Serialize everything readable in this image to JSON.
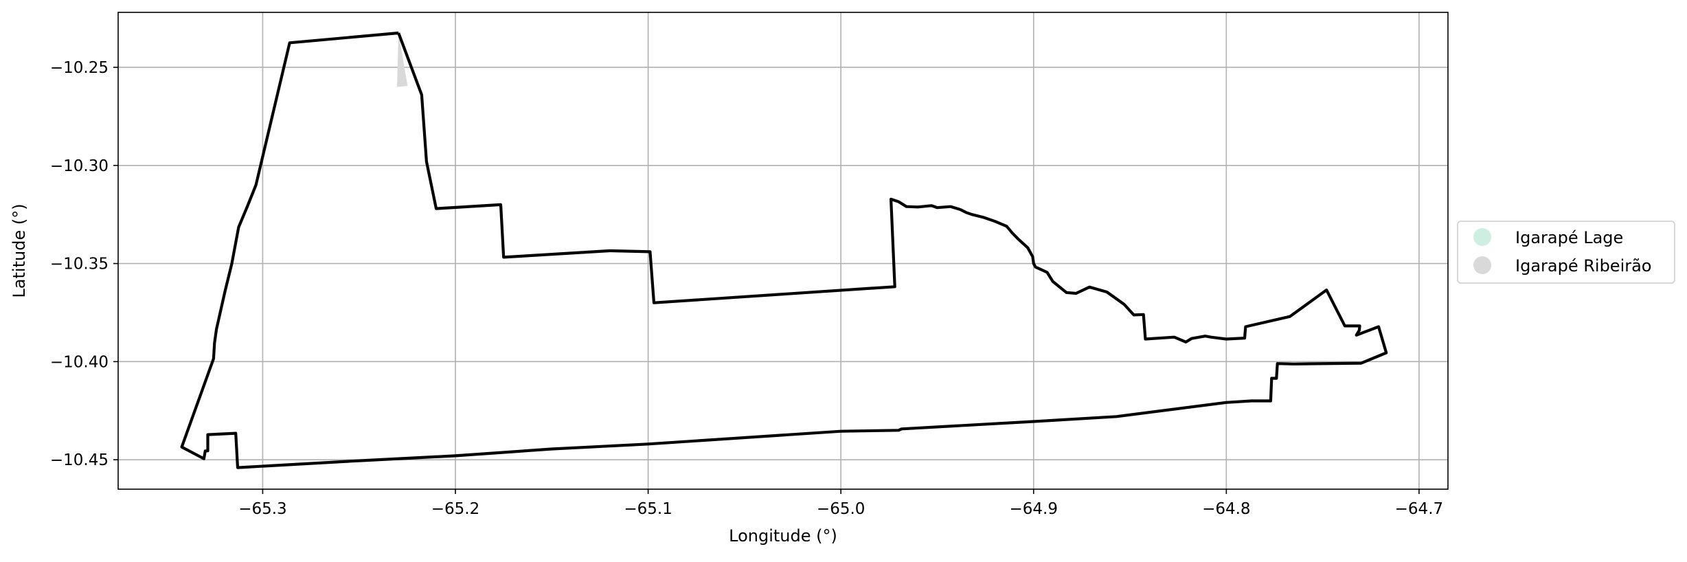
{
  "chart_data": {
    "type": "map",
    "xlabel": "Longitude (°)",
    "ylabel": "Latitude (°)",
    "xlim": [
      -65.375,
      -64.685
    ],
    "ylim": [
      -10.465,
      -10.222
    ],
    "xticks": [
      -65.3,
      -65.2,
      -65.1,
      -65.0,
      -64.9,
      -64.8,
      -64.7
    ],
    "xtick_labels": [
      "−65.3",
      "−65.2",
      "−65.1",
      "−65.0",
      "−64.9",
      "−64.8",
      "−64.7"
    ],
    "yticks": [
      -10.25,
      -10.3,
      -10.35,
      -10.4,
      -10.45
    ],
    "ytick_labels": [
      "−10.25",
      "−10.30",
      "−10.35",
      "−10.40",
      "−10.45"
    ],
    "grid": true,
    "legend_position": "right",
    "legend": [
      {
        "label": "Igarapé Lage",
        "color": "#cdeee0"
      },
      {
        "label": "Igarapé Ribeirão",
        "color": "#d9d9d9"
      }
    ],
    "boundary_color": "#000000",
    "shaded_region_color": "#d9d9d9",
    "shaded_region": [
      [
        -65.2295,
        -10.2325
      ],
      [
        -65.2248,
        -10.2595
      ],
      [
        -65.2303,
        -10.26
      ]
    ],
    "boundary": [
      [
        -65.2295,
        -10.2325
      ],
      [
        -65.286,
        -10.2375
      ],
      [
        -65.3035,
        -10.31
      ],
      [
        -65.308,
        -10.321
      ],
      [
        -65.3125,
        -10.3315
      ],
      [
        -65.316,
        -10.35
      ],
      [
        -65.3195,
        -10.364
      ],
      [
        -65.324,
        -10.3835
      ],
      [
        -65.325,
        -10.3905
      ],
      [
        -65.3255,
        -10.3985
      ],
      [
        -65.342,
        -10.4435
      ],
      [
        -65.3305,
        -10.4495
      ],
      [
        -65.3298,
        -10.4455
      ],
      [
        -65.3285,
        -10.4455
      ],
      [
        -65.3285,
        -10.4372
      ],
      [
        -65.314,
        -10.4365
      ],
      [
        -65.313,
        -10.454
      ],
      [
        -65.25,
        -10.4505
      ],
      [
        -65.2,
        -10.448
      ],
      [
        -65.15,
        -10.4445
      ],
      [
        -65.1,
        -10.442
      ],
      [
        -65.0,
        -10.4355
      ],
      [
        -64.97,
        -10.435
      ],
      [
        -64.9685,
        -10.4343
      ],
      [
        -64.9,
        -10.4305
      ],
      [
        -64.857,
        -10.428
      ],
      [
        -64.8,
        -10.4208
      ],
      [
        -64.787,
        -10.42
      ],
      [
        -64.777,
        -10.42
      ],
      [
        -64.7765,
        -10.4085
      ],
      [
        -64.774,
        -10.4085
      ],
      [
        -64.7735,
        -10.401
      ],
      [
        -64.765,
        -10.4012
      ],
      [
        -64.73,
        -10.4008
      ],
      [
        -64.717,
        -10.3955
      ],
      [
        -64.721,
        -10.3822
      ],
      [
        -64.7325,
        -10.3865
      ],
      [
        -64.731,
        -10.384
      ],
      [
        -64.7308,
        -10.3818
      ],
      [
        -64.7385,
        -10.3818
      ],
      [
        -64.748,
        -10.3635
      ],
      [
        -64.767,
        -10.377
      ],
      [
        -64.79,
        -10.3822
      ],
      [
        -64.7905,
        -10.388
      ],
      [
        -64.8,
        -10.3885
      ],
      [
        -64.808,
        -10.3875
      ],
      [
        -64.811,
        -10.387
      ],
      [
        -64.818,
        -10.3882
      ],
      [
        -64.821,
        -10.39
      ],
      [
        -64.827,
        -10.3875
      ],
      [
        -64.842,
        -10.3885
      ],
      [
        -64.843,
        -10.376
      ],
      [
        -64.848,
        -10.3762
      ],
      [
        -64.853,
        -10.3708
      ],
      [
        -64.862,
        -10.3645
      ],
      [
        -64.871,
        -10.362
      ],
      [
        -64.878,
        -10.3652
      ],
      [
        -64.883,
        -10.3648
      ],
      [
        -64.89,
        -10.3592
      ],
      [
        -64.893,
        -10.3545
      ],
      [
        -64.899,
        -10.3518
      ],
      [
        -64.9,
        -10.35
      ],
      [
        -64.9005,
        -10.3465
      ],
      [
        -64.903,
        -10.342
      ],
      [
        -64.908,
        -10.3375
      ],
      [
        -64.911,
        -10.3345
      ],
      [
        -64.914,
        -10.331
      ],
      [
        -64.92,
        -10.3285
      ],
      [
        -64.926,
        -10.3265
      ],
      [
        -64.932,
        -10.325
      ],
      [
        -64.935,
        -10.324
      ],
      [
        -64.938,
        -10.3225
      ],
      [
        -64.943,
        -10.321
      ],
      [
        -64.95,
        -10.3215
      ],
      [
        -64.953,
        -10.3205
      ],
      [
        -64.96,
        -10.3212
      ],
      [
        -64.966,
        -10.321
      ],
      [
        -64.97,
        -10.3185
      ],
      [
        -64.974,
        -10.3172
      ],
      [
        -64.972,
        -10.3618
      ],
      [
        -65.097,
        -10.37
      ],
      [
        -65.099,
        -10.344
      ],
      [
        -65.12,
        -10.3435
      ],
      [
        -65.175,
        -10.3468
      ],
      [
        -65.1765,
        -10.32
      ],
      [
        -65.21,
        -10.322
      ],
      [
        -65.215,
        -10.298
      ],
      [
        -65.2175,
        -10.264
      ],
      [
        -65.2295,
        -10.2325
      ]
    ]
  }
}
